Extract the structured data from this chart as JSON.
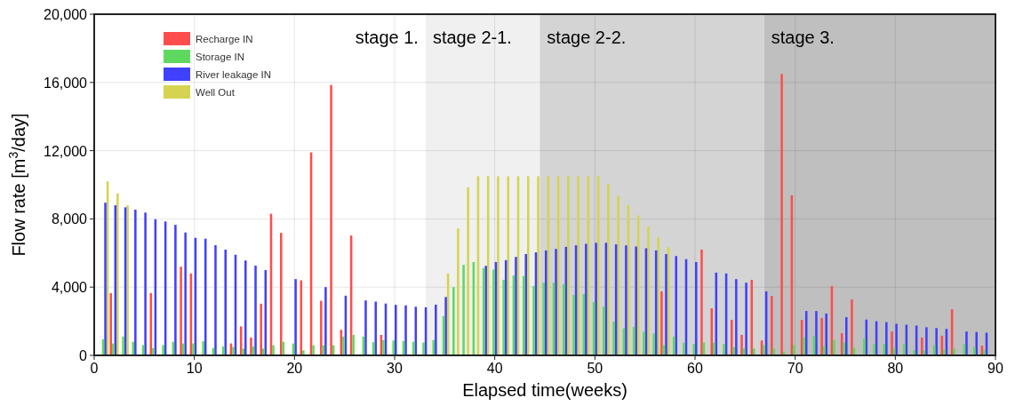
{
  "chart_data": {
    "type": "bar",
    "xlabel": "Elapsed time(weeks)",
    "ylabel": "Flow rate [m$^{3}$/day]",
    "x": [
      1,
      2,
      3,
      4,
      5,
      6,
      7,
      8,
      9,
      10,
      11,
      12,
      13,
      14,
      15,
      16,
      17,
      18,
      19,
      20,
      21,
      22,
      23,
      24,
      25,
      26,
      27,
      28,
      29,
      30,
      31,
      32,
      33,
      34,
      35,
      36,
      37,
      38,
      39,
      40,
      41,
      42,
      43,
      44,
      45,
      46,
      47,
      48,
      49,
      50,
      51,
      52,
      53,
      54,
      55,
      56,
      57,
      58,
      59,
      60,
      61,
      62,
      63,
      64,
      65,
      66,
      67,
      68,
      69,
      70,
      71,
      72,
      73,
      74,
      75,
      76,
      77,
      78,
      79,
      80,
      81,
      82,
      83,
      84,
      85,
      86,
      87,
      88,
      89
    ],
    "xlim": [
      0,
      90
    ],
    "xticks": [
      0,
      10,
      20,
      30,
      40,
      50,
      60,
      70,
      80,
      90
    ],
    "ylim": [
      0,
      20000
    ],
    "yticks": [
      {
        "value": 0,
        "label": "0"
      },
      {
        "value": 4000,
        "label": "4,000"
      },
      {
        "value": 8000,
        "label": "8,000"
      },
      {
        "value": 12000,
        "label": "12,000"
      },
      {
        "value": 16000,
        "label": "16,000"
      },
      {
        "value": 20000,
        "label": "20,000"
      }
    ],
    "grid": true,
    "legend": "top left",
    "series": [
      {
        "name": "Recharge IN",
        "color": "#ff4d4d",
        "values": [
          null,
          3650,
          null,
          null,
          null,
          3650,
          null,
          null,
          5200,
          4800,
          null,
          null,
          null,
          700,
          1700,
          1040,
          3030,
          8300,
          7180,
          null,
          4400,
          11900,
          3200,
          15850,
          1500,
          7030,
          null,
          null,
          1200,
          null,
          null,
          null,
          null,
          null,
          null,
          null,
          null,
          null,
          null,
          null,
          null,
          null,
          null,
          null,
          null,
          null,
          null,
          null,
          null,
          null,
          null,
          null,
          null,
          null,
          null,
          null,
          3750,
          null,
          null,
          null,
          6200,
          2760,
          null,
          2080,
          1200,
          4430,
          870,
          3480,
          16500,
          9380,
          2080,
          null,
          2190,
          4060,
          1300,
          3280,
          null,
          null,
          null,
          1400,
          null,
          null,
          1040,
          null,
          1150,
          2700,
          null,
          null,
          570
        ]
      },
      {
        "name": "Storage IN",
        "color": "#5fd85f",
        "values": [
          950,
          700,
          1100,
          800,
          600,
          430,
          600,
          800,
          700,
          700,
          830,
          430,
          520,
          500,
          400,
          530,
          400,
          600,
          800,
          700,
          300,
          600,
          600,
          600,
          1100,
          1200,
          1100,
          780,
          900,
          870,
          850,
          800,
          760,
          900,
          2300,
          4000,
          5300,
          5470,
          5120,
          5030,
          4430,
          4690,
          4660,
          4070,
          4260,
          4260,
          4170,
          3540,
          3600,
          3120,
          2860,
          1980,
          1580,
          1680,
          1390,
          1280,
          600,
          1100,
          750,
          660,
          750,
          750,
          660,
          480,
          400,
          400,
          600,
          400,
          220,
          600,
          1040,
          1130,
          560,
          900,
          750,
          450,
          1000,
          660,
          660,
          450,
          660,
          300,
          300,
          600,
          350,
          400,
          650,
          480,
          300
        ]
      },
      {
        "name": "River leakage IN",
        "color": "#4040ff",
        "values": [
          8950,
          8800,
          8680,
          8540,
          8370,
          7980,
          7850,
          7650,
          7200,
          6890,
          6840,
          6460,
          6200,
          5900,
          5560,
          5260,
          5000,
          null,
          null,
          4470,
          null,
          null,
          4000,
          null,
          3500,
          null,
          3220,
          3150,
          3040,
          2960,
          2930,
          2850,
          2820,
          2970,
          3420,
          null,
          null,
          null,
          5250,
          5470,
          5580,
          5770,
          5940,
          6040,
          6150,
          6240,
          6360,
          6450,
          6540,
          6600,
          6600,
          6510,
          6450,
          6380,
          6280,
          6150,
          5940,
          5820,
          5640,
          5470,
          null,
          4850,
          4800,
          4470,
          4260,
          null,
          3750,
          null,
          null,
          null,
          2600,
          2600,
          2450,
          null,
          2240,
          null,
          2100,
          2000,
          1950,
          1850,
          1800,
          1750,
          1650,
          1600,
          1550,
          null,
          1400,
          1370,
          1330
        ]
      },
      {
        "name": "Well Out",
        "color": "#d4d450",
        "values": [
          10200,
          9500,
          8800,
          null,
          null,
          null,
          null,
          null,
          null,
          null,
          null,
          null,
          null,
          null,
          null,
          null,
          null,
          null,
          null,
          null,
          null,
          null,
          null,
          null,
          null,
          null,
          null,
          null,
          null,
          null,
          null,
          null,
          null,
          null,
          4800,
          7450,
          9850,
          10500,
          10500,
          10500,
          10500,
          10500,
          10500,
          10500,
          10500,
          10500,
          10500,
          10500,
          10500,
          10500,
          10050,
          9370,
          8800,
          8200,
          7550,
          6930,
          6350,
          null,
          null,
          null,
          null,
          null,
          null,
          null,
          null,
          null,
          null,
          null,
          null,
          null,
          null,
          null,
          null,
          null,
          null,
          null,
          null,
          null,
          null,
          null,
          null,
          null,
          null,
          null,
          null,
          null,
          null,
          null,
          null
        ]
      }
    ],
    "annotations": [
      "stage 1."
    ],
    "bands": [
      {
        "axis": "x",
        "from": 33.1,
        "to": 44.5,
        "label": "stage 2-1.",
        "color": "#f0f0f0"
      },
      {
        "axis": "x",
        "from": 44.5,
        "to": 66.9,
        "label": "stage 2-2.",
        "color": "#d4d4d4"
      },
      {
        "axis": "x",
        "from": 66.9,
        "to": 90,
        "label": "stage 3.",
        "color": "#bfbfbf"
      }
    ]
  }
}
